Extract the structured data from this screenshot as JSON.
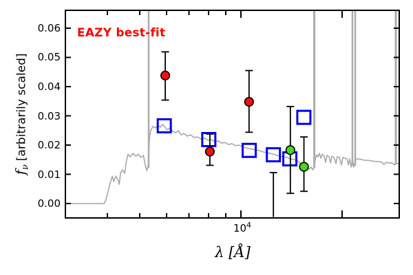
{
  "figure": {
    "annotation": "EAZY best-fit",
    "xlabel": "λ [Å]",
    "ylabel": {
      "symbol": "f",
      "subscript": "ν",
      "rest": "[arbitrarily scaled]"
    },
    "xtick_label": {
      "base": "10",
      "exponent": "4"
    },
    "ytick_labels": [
      "0.00",
      "0.01",
      "0.02",
      "0.03",
      "0.04",
      "0.05",
      "0.06"
    ],
    "colors": {
      "annotation": "#ff0000",
      "model_spectrum": "#ababab",
      "model_photometry": "#0000ee",
      "observed_primary": "#ee1111",
      "observed_secondary": "#4cd322",
      "errorbar": "#000000",
      "axes": "#000000",
      "background": "#ffffff"
    }
  },
  "chart_data": {
    "type": "line+scatter",
    "title": "EAZY best-fit",
    "xlabel": "lambda [Angstrom]",
    "ylabel": "f_nu [arbitrarily scaled]",
    "x_scale": "log",
    "xlim": [
      3000,
      29600
    ],
    "ylim": [
      -0.0049,
      0.0661
    ],
    "grid": false,
    "legend": null,
    "yticks": [
      {
        "value": 0.0,
        "label": "0.00"
      },
      {
        "value": 0.01,
        "label": "0.01"
      },
      {
        "value": 0.02,
        "label": "0.02"
      },
      {
        "value": 0.03,
        "label": "0.03"
      },
      {
        "value": 0.04,
        "label": "0.04"
      },
      {
        "value": 0.05,
        "label": "0.05"
      },
      {
        "value": 0.06,
        "label": "0.06"
      }
    ],
    "xticks": {
      "minor": [
        4000,
        5000,
        6000,
        7000,
        8000,
        9000
      ],
      "major": [
        {
          "value": 10000,
          "label": "10^4"
        }
      ],
      "major_unlabeled": [
        20000
      ]
    },
    "series": {
      "model_spectrum": {
        "name": "model spectrum",
        "points": [
          [
            3000,
            0.0
          ],
          [
            3910,
            0.0
          ],
          [
            3960,
            0.0012
          ],
          [
            4020,
            0.0042
          ],
          [
            4080,
            0.0071
          ],
          [
            4140,
            0.0094
          ],
          [
            4180,
            0.0075
          ],
          [
            4240,
            0.0094
          ],
          [
            4300,
            0.0082
          ],
          [
            4340,
            0.0066
          ],
          [
            4380,
            0.0106
          ],
          [
            4440,
            0.0115
          ],
          [
            4510,
            0.0104
          ],
          [
            4550,
            0.0141
          ],
          [
            4610,
            0.0169
          ],
          [
            4680,
            0.016
          ],
          [
            4770,
            0.0172
          ],
          [
            4860,
            0.0162
          ],
          [
            4950,
            0.0169
          ],
          [
            5040,
            0.0158
          ],
          [
            5120,
            0.0165
          ],
          [
            5190,
            0.0132
          ],
          [
            5240,
            0.0113
          ],
          [
            5290,
            0.0127
          ],
          [
            5340,
            0.0226
          ],
          [
            5390,
            0.0252
          ],
          [
            5470,
            0.0264
          ],
          [
            5570,
            0.0259
          ],
          [
            5650,
            0.0268
          ],
          [
            5760,
            0.0261
          ],
          [
            5840,
            0.0271
          ],
          [
            5920,
            0.0264
          ],
          [
            6030,
            0.0252
          ],
          [
            6150,
            0.0259
          ],
          [
            6270,
            0.0247
          ],
          [
            6380,
            0.0242
          ],
          [
            6510,
            0.0249
          ],
          [
            6630,
            0.0235
          ],
          [
            6760,
            0.024
          ],
          [
            6920,
            0.0231
          ],
          [
            7080,
            0.0235
          ],
          [
            7250,
            0.0226
          ],
          [
            7430,
            0.0228
          ],
          [
            7600,
            0.0221
          ],
          [
            7780,
            0.0224
          ],
          [
            7970,
            0.0217
          ],
          [
            8160,
            0.0219
          ],
          [
            8360,
            0.0212
          ],
          [
            8560,
            0.0214
          ],
          [
            8760,
            0.0207
          ],
          [
            8970,
            0.0209
          ],
          [
            9180,
            0.0202
          ],
          [
            9400,
            0.0205
          ],
          [
            9630,
            0.0198
          ],
          [
            9860,
            0.02
          ],
          [
            10100,
            0.0195
          ],
          [
            10340,
            0.0191
          ],
          [
            10580,
            0.0188
          ],
          [
            10840,
            0.0186
          ],
          [
            11100,
            0.0184
          ],
          [
            11360,
            0.0181
          ],
          [
            11630,
            0.0177
          ],
          [
            11910,
            0.0174
          ],
          [
            12190,
            0.0172
          ],
          [
            12490,
            0.0169
          ],
          [
            12780,
            0.0165
          ],
          [
            13090,
            0.0162
          ],
          [
            13400,
            0.016
          ],
          [
            13720,
            0.0158
          ],
          [
            14050,
            0.0153
          ],
          [
            14390,
            0.0151
          ],
          [
            14730,
            0.0146
          ],
          [
            15010,
            0.0139
          ],
          [
            15300,
            0.0129
          ],
          [
            15520,
            0.012
          ],
          [
            15740,
            0.0125
          ],
          [
            15960,
            0.0118
          ],
          [
            16190,
            0.0125
          ],
          [
            16340,
            0.0115
          ],
          [
            16500,
            0.0122
          ],
          [
            16650,
            0.0151
          ],
          [
            16810,
            0.0167
          ],
          [
            16970,
            0.016
          ],
          [
            17130,
            0.0172
          ],
          [
            17290,
            0.0155
          ],
          [
            17460,
            0.0169
          ],
          [
            17710,
            0.0162
          ],
          [
            17870,
            0.0141
          ],
          [
            18040,
            0.0165
          ],
          [
            18300,
            0.016
          ],
          [
            18470,
            0.0139
          ],
          [
            18650,
            0.0162
          ],
          [
            18910,
            0.0158
          ],
          [
            19180,
            0.0137
          ],
          [
            19360,
            0.016
          ],
          [
            19640,
            0.0158
          ],
          [
            19920,
            0.0132
          ],
          [
            20110,
            0.0158
          ],
          [
            20400,
            0.0155
          ],
          [
            20690,
            0.0153
          ],
          [
            20890,
            0.0132
          ],
          [
            21080,
            0.0153
          ],
          [
            21280,
            0.0125
          ],
          [
            21480,
            0.0151
          ],
          [
            21680,
            0.0125
          ],
          [
            21990,
            0.0151
          ],
          [
            22310,
            0.0153
          ],
          [
            22840,
            0.0151
          ],
          [
            23380,
            0.0148
          ],
          [
            23940,
            0.0148
          ],
          [
            24510,
            0.0146
          ],
          [
            25090,
            0.0144
          ],
          [
            25690,
            0.0144
          ],
          [
            26300,
            0.0141
          ],
          [
            26670,
            0.0134
          ],
          [
            27050,
            0.0141
          ],
          [
            27570,
            0.0139
          ],
          [
            28220,
            0.0139
          ],
          [
            28630,
            0.0132
          ],
          [
            29030,
            0.0137
          ],
          [
            29580,
            0.0137
          ]
        ]
      },
      "emission_lines": [
        {
          "lambda": 5310,
          "f_base": 0.0122,
          "width": 2.5
        },
        {
          "lambda": 16530,
          "f_base": 0.0122,
          "width": 3
        },
        {
          "lambda": 21470,
          "f_base": 0.0129,
          "width": 2.5
        },
        {
          "lambda": 21890,
          "f_base": 0.0129,
          "width": 2.5
        },
        {
          "lambda": 28920,
          "f_base": 0.0134,
          "width": 3
        }
      ],
      "model_photometry": {
        "name": "model photometry (open squares)",
        "points": [
          [
            5910,
            0.0266
          ],
          [
            8020,
            0.0219
          ],
          [
            10580,
            0.0182
          ],
          [
            12490,
            0.0167
          ],
          [
            13980,
            0.0153
          ],
          [
            15390,
            0.0295
          ]
        ]
      },
      "observed_photometry_red": {
        "name": "observed photometry (red)",
        "points": [
          {
            "lambda": 5950,
            "f": 0.0438,
            "err_plus": 0.0081,
            "err_minus": 0.0084
          },
          {
            "lambda": 8080,
            "f": 0.0178,
            "err_plus": 0.006,
            "err_minus": 0.0047
          },
          {
            "lambda": 10570,
            "f": 0.0348,
            "err_plus": 0.0107,
            "err_minus": 0.0104
          }
        ]
      },
      "observed_photometry_green": {
        "name": "observed photometry (green)",
        "points": [
          {
            "lambda": 14030,
            "f": 0.0183,
            "err_plus": 0.0149,
            "err_minus": 0.0148
          },
          {
            "lambda": 15400,
            "f": 0.0126,
            "err_plus": 0.0102,
            "err_minus": 0.0084
          }
        ]
      },
      "faint_point_errorbar": {
        "lambda": 12490,
        "f_top": 0.0106,
        "f_bottom": -0.0046
      }
    }
  }
}
